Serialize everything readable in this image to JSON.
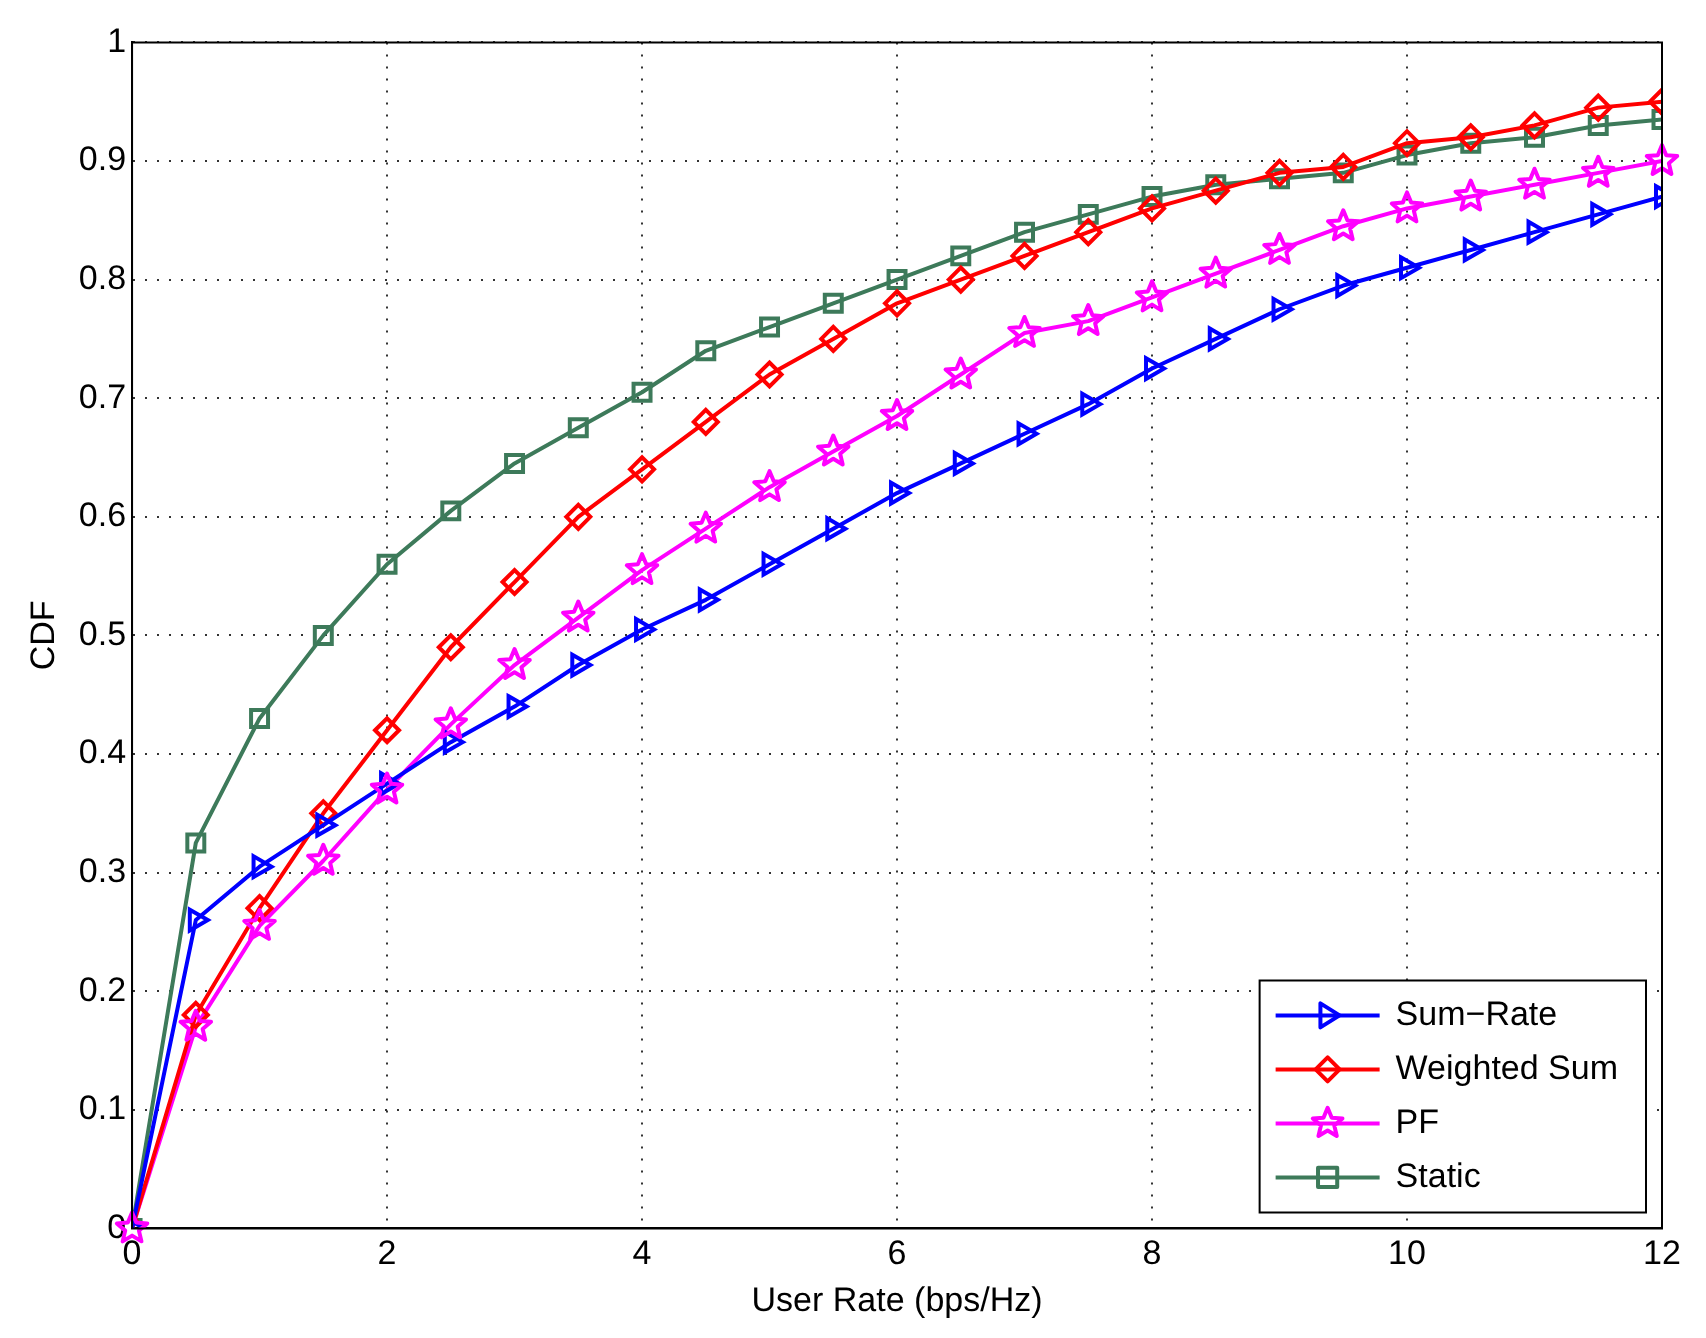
{
  "chart_data": {
    "type": "line",
    "xlabel": "User Rate (bps/Hz)",
    "ylabel": "CDF",
    "x": [
      0,
      0.5,
      1,
      1.5,
      2,
      2.5,
      3,
      3.5,
      4,
      4.5,
      5,
      5.5,
      6,
      6.5,
      7,
      7.5,
      8,
      8.5,
      9,
      9.5,
      10,
      10.5,
      11,
      11.5,
      12
    ],
    "series": [
      {
        "name": "Sum−Rate",
        "color": "#0000ff",
        "marker": "triangle",
        "values": [
          0,
          0.26,
          0.305,
          0.34,
          0.375,
          0.41,
          0.44,
          0.475,
          0.505,
          0.53,
          0.56,
          0.59,
          0.62,
          0.645,
          0.67,
          0.695,
          0.725,
          0.75,
          0.775,
          0.795,
          0.81,
          0.825,
          0.84,
          0.855,
          0.87
        ]
      },
      {
        "name": "Weighted Sum",
        "color": "#ff0000",
        "marker": "diamond",
        "values": [
          0,
          0.18,
          0.27,
          0.35,
          0.42,
          0.49,
          0.545,
          0.6,
          0.64,
          0.68,
          0.72,
          0.75,
          0.78,
          0.8,
          0.82,
          0.84,
          0.86,
          0.875,
          0.89,
          0.895,
          0.915,
          0.92,
          0.93,
          0.945,
          0.95
        ]
      },
      {
        "name": "PF",
        "color": "#ff00ff",
        "marker": "star",
        "values": [
          0,
          0.17,
          0.255,
          0.31,
          0.37,
          0.425,
          0.475,
          0.515,
          0.555,
          0.59,
          0.625,
          0.655,
          0.685,
          0.72,
          0.755,
          0.765,
          0.785,
          0.805,
          0.825,
          0.845,
          0.86,
          0.87,
          0.88,
          0.89,
          0.9
        ]
      },
      {
        "name": "Static",
        "color": "#3d7a5a",
        "marker": "square",
        "values": [
          0,
          0.325,
          0.43,
          0.5,
          0.56,
          0.605,
          0.645,
          0.675,
          0.705,
          0.74,
          0.76,
          0.78,
          0.8,
          0.82,
          0.84,
          0.855,
          0.87,
          0.88,
          0.885,
          0.89,
          0.905,
          0.915,
          0.92,
          0.93,
          0.935
        ]
      }
    ],
    "xlim": [
      0,
      12
    ],
    "xticks": [
      0,
      2,
      4,
      6,
      8,
      10,
      12
    ],
    "ylim": [
      0,
      1
    ],
    "yticks": [
      0,
      0.1,
      0.2,
      0.3,
      0.4,
      0.5,
      0.6,
      0.7,
      0.8,
      0.9,
      1
    ],
    "grid": true,
    "legend": "bottom right",
    "line_style": "solid"
  }
}
